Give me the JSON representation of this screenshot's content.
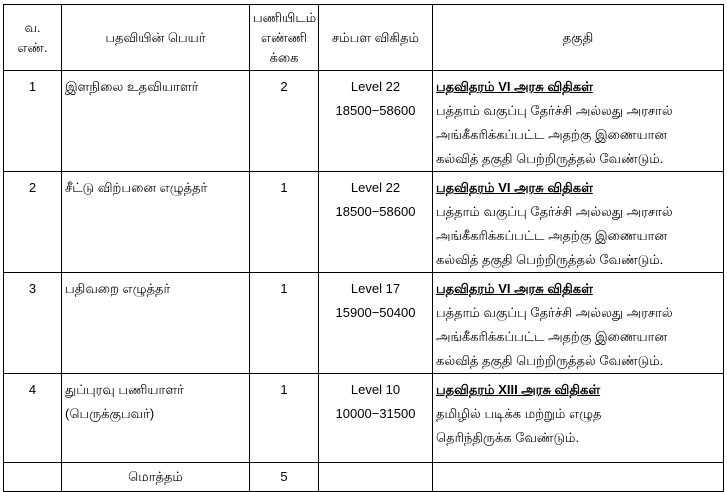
{
  "headers": {
    "serial": [
      "வ.",
      "எண்."
    ],
    "post": "பதவியின் பெயர்",
    "count": [
      "பணியிடம்",
      "எண்ணி",
      "க்கை"
    ],
    "pay": "சம்பள விகிதம்",
    "qualification": "தகுதி"
  },
  "rows": [
    {
      "no": "1",
      "post": [
        "இளநிலை உதவியாளர்"
      ],
      "count": "2",
      "level": "Level 22",
      "scale": "18500−58600",
      "rule": "பதவிதரம் VI அரசு விதிகள்",
      "qual": [
        "பத்தாம் வகுப்பு தேர்ச்சி அல்லது அரசால்",
        "அங்கீகரிக்கப்பட்ட அதற்கு இணையான",
        "கல்வித் தகுதி பெற்றிருத்தல் வேண்டும்."
      ]
    },
    {
      "no": "2",
      "post": [
        "சீட்டு விற்பனை எழுத்தர்"
      ],
      "count": "1",
      "level": "Level 22",
      "scale": "18500−58600",
      "rule": "பதவிதரம் VI அரசு விதிகள்",
      "qual": [
        "பத்தாம் வகுப்பு தேர்ச்சி அல்லது அரசால்",
        "அங்கீகரிக்கப்பட்ட அதற்கு இணையான",
        "கல்வித் தகுதி பெற்றிருத்தல் வேண்டும்."
      ]
    },
    {
      "no": "3",
      "post": [
        "பதிவறை எழுத்தர்"
      ],
      "count": "1",
      "level": "Level 17",
      "scale": "15900−50400",
      "rule": "பதவிதரம் VI அரசு விதிகள்",
      "qual": [
        "பத்தாம் வகுப்பு தேர்ச்சி அல்லது அரசால்",
        "அங்கீகரிக்கப்பட்ட அதற்கு இணையான",
        "கல்வித் தகுதி பெற்றிருத்தல் வேண்டும்."
      ]
    },
    {
      "no": "4",
      "post": [
        "துப்புரவு பணியாளர்",
        "(பெருக்குபவர்)"
      ],
      "count": "1",
      "level": "Level 10",
      "scale": "10000−31500",
      "rule": "பதவிதரம் XIII அரசு விதிகள்",
      "qual": [
        "தமிழில் படிக்க மற்றும் எழுத",
        "தெரிந்திருக்க வேண்டும்."
      ]
    }
  ],
  "total": {
    "label": "மொத்தம்",
    "value": "5"
  }
}
